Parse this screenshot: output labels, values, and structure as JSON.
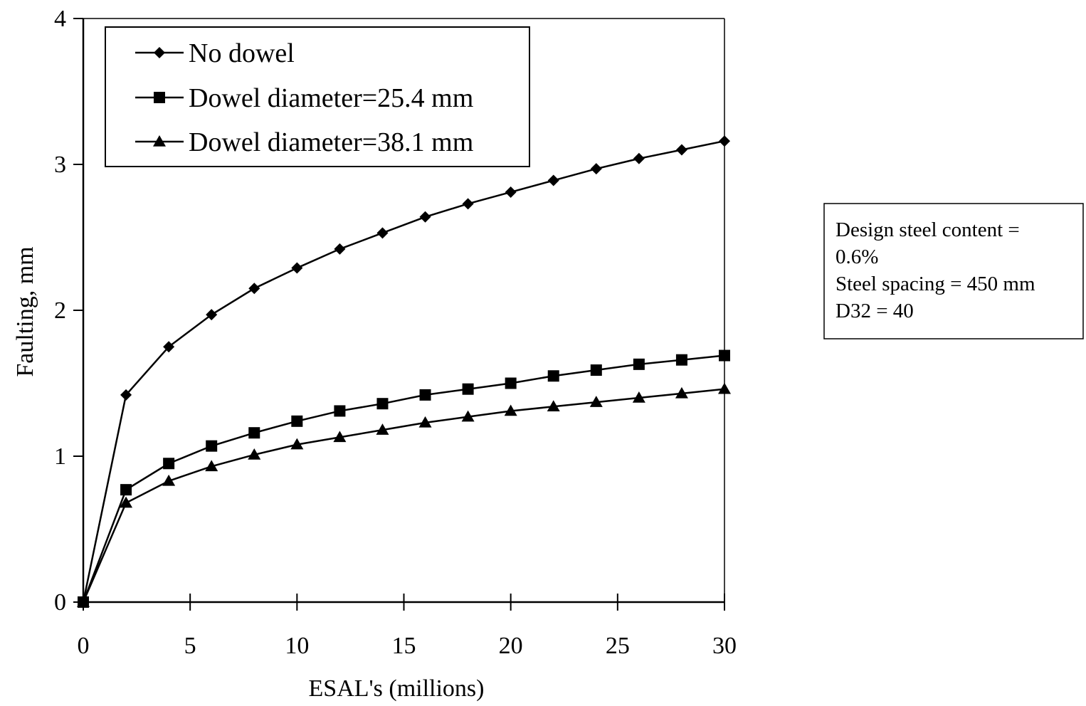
{
  "chart_data": {
    "type": "line",
    "title": "",
    "xlabel": "ESAL's (millions)",
    "ylabel": "Faulting, mm",
    "xlim": [
      0,
      30
    ],
    "ylim": [
      0,
      4
    ],
    "xticks": [
      0,
      5,
      10,
      15,
      20,
      25,
      30
    ],
    "yticks": [
      0,
      1,
      2,
      3,
      4
    ],
    "grid": false,
    "legend_position": "top-left",
    "x": [
      0,
      2,
      4,
      6,
      8,
      10,
      12,
      14,
      16,
      18,
      20,
      22,
      24,
      26,
      28,
      30
    ],
    "series": [
      {
        "name": "No dowel",
        "marker": "diamond",
        "values": [
          0,
          1.42,
          1.75,
          1.97,
          2.15,
          2.29,
          2.42,
          2.53,
          2.64,
          2.73,
          2.81,
          2.89,
          2.97,
          3.04,
          3.1,
          3.16
        ]
      },
      {
        "name": "Dowel diameter=25.4 mm",
        "marker": "square",
        "values": [
          0,
          0.77,
          0.95,
          1.07,
          1.16,
          1.24,
          1.31,
          1.36,
          1.42,
          1.46,
          1.5,
          1.55,
          1.59,
          1.63,
          1.66,
          1.69
        ]
      },
      {
        "name": "Dowel diameter=38.1 mm",
        "marker": "triangle",
        "values": [
          0,
          0.68,
          0.83,
          0.93,
          1.01,
          1.08,
          1.13,
          1.18,
          1.23,
          1.27,
          1.31,
          1.34,
          1.37,
          1.4,
          1.43,
          1.46
        ]
      }
    ],
    "annotation": {
      "lines": [
        "Design steel content =",
        "0.6%",
        "Steel spacing = 450 mm",
        "D32 = 40"
      ]
    },
    "colors": {
      "line": "#000000",
      "background": "#ffffff"
    }
  }
}
